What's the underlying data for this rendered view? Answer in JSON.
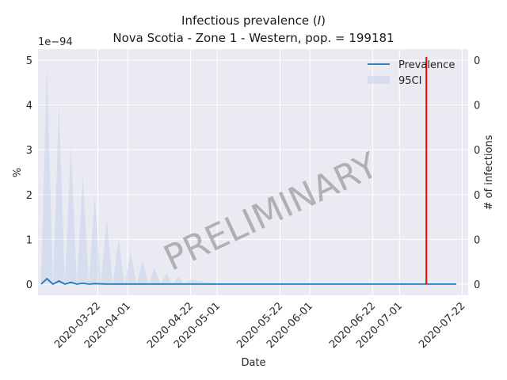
{
  "chart_data": {
    "type": "line",
    "title_prefix": "Infectious prevalence (",
    "title_var": "I",
    "title_suffix": ")",
    "subtitle": "Nova Scotia - Zone 1 - Western, pop. = 199181",
    "xlabel": "Date",
    "ylabel": "%",
    "y2label": "# of infections",
    "y_offset_label": "1e−94",
    "watermark": "PRELIMINARY",
    "ylim": [
      -0.25,
      5.25
    ],
    "y_ticks": [
      0,
      1,
      2,
      3,
      4,
      5
    ],
    "y2_tick_labels": [
      "0",
      "0",
      "0",
      "0",
      "0",
      "0"
    ],
    "xlim": [
      "2020-03-02",
      "2020-07-24"
    ],
    "x_ticks": [
      "2020-03-22",
      "2020-04-01",
      "2020-04-22",
      "2020-05-01",
      "2020-05-22",
      "2020-06-01",
      "2020-06-22",
      "2020-07-01",
      "2020-07-22"
    ],
    "grid": true,
    "legend_position": "top-right",
    "series": [
      {
        "name": "Prevalence",
        "color": "#1f77b4",
        "x": [
          "2020-03-03",
          "2020-03-05",
          "2020-03-07",
          "2020-03-09",
          "2020-03-11",
          "2020-03-13",
          "2020-03-15",
          "2020-03-17",
          "2020-03-19",
          "2020-03-21",
          "2020-03-25",
          "2020-04-01",
          "2020-04-15",
          "2020-05-01",
          "2020-06-01",
          "2020-07-01",
          "2020-07-20"
        ],
        "values": [
          0.0,
          0.12,
          0.0,
          0.07,
          0.0,
          0.04,
          0.0,
          0.02,
          0.0,
          0.01,
          0.0,
          0.0,
          0.0,
          0.0,
          0.0,
          0.0,
          0.0
        ]
      },
      {
        "name": "95CI",
        "color": "#aec7e8",
        "type": "band",
        "x": [
          "2020-03-03",
          "2020-03-05",
          "2020-03-07",
          "2020-03-09",
          "2020-03-11",
          "2020-03-13",
          "2020-03-15",
          "2020-03-17",
          "2020-03-19",
          "2020-03-21",
          "2020-03-23",
          "2020-03-25",
          "2020-03-27",
          "2020-03-29",
          "2020-03-31",
          "2020-04-02",
          "2020-04-04",
          "2020-04-06",
          "2020-04-08",
          "2020-04-10",
          "2020-04-12",
          "2020-04-14",
          "2020-04-16",
          "2020-04-18",
          "2020-04-20",
          "2020-04-22",
          "2020-05-01",
          "2020-07-20"
        ],
        "upper": [
          0.0,
          4.9,
          0.0,
          4.0,
          0.0,
          3.1,
          0.0,
          2.45,
          0.0,
          1.95,
          0.0,
          1.45,
          0.0,
          1.0,
          0.0,
          0.72,
          0.0,
          0.52,
          0.0,
          0.36,
          0.0,
          0.25,
          0.0,
          0.16,
          0.0,
          0.1,
          0.0,
          0.0
        ],
        "lower": [
          0,
          0,
          0,
          0,
          0,
          0,
          0,
          0,
          0,
          0,
          0,
          0,
          0,
          0,
          0,
          0,
          0,
          0,
          0,
          0,
          0,
          0,
          0,
          0,
          0,
          0,
          0,
          0
        ]
      }
    ],
    "vline": {
      "x": "2020-07-10",
      "color": "#ff0000"
    }
  }
}
